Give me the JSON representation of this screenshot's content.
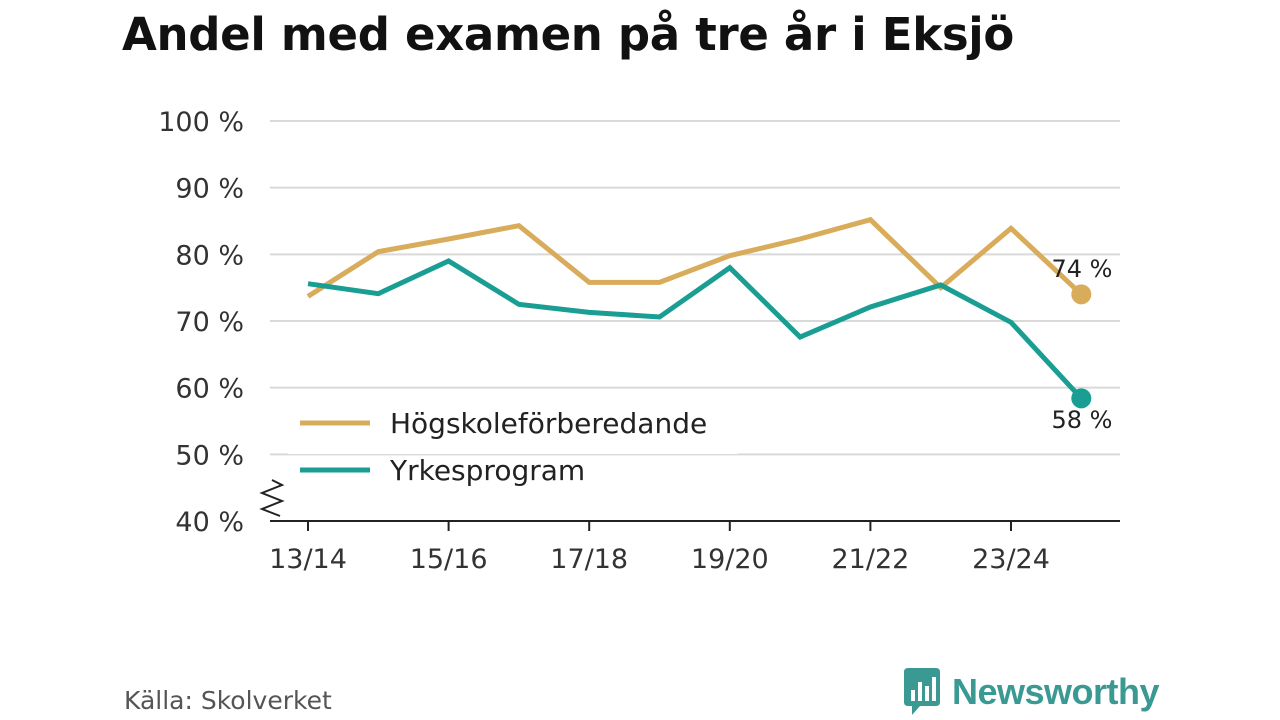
{
  "chart_data": {
    "type": "line",
    "title": "Andel med examen på tre år i Eksjö",
    "categories": [
      "13/14",
      "14/15",
      "15/16",
      "16/17",
      "17/18",
      "18/19",
      "19/20",
      "20/21",
      "21/22",
      "22/23",
      "23/24",
      "24/25"
    ],
    "x_tick_labels": [
      "13/14",
      "15/16",
      "17/18",
      "19/20",
      "21/22",
      "23/24"
    ],
    "y_tick_labels": [
      "40 %",
      "50 %",
      "60 %",
      "70 %",
      "80 %",
      "90 %",
      "100 %"
    ],
    "y_ticks": [
      40,
      50,
      60,
      70,
      80,
      90,
      100
    ],
    "ylim": [
      40,
      100
    ],
    "grid": true,
    "legend_position": "bottom-left",
    "series": [
      {
        "name": "Högskoleförberedande",
        "color": "#d8ac5b",
        "values": [
          73.7,
          80.4,
          82.3,
          84.3,
          75.8,
          75.8,
          79.8,
          82.3,
          85.2,
          75.0,
          83.9,
          74.0
        ],
        "end_label": "74 %"
      },
      {
        "name": "Yrkesprogram",
        "color": "#1a9e93",
        "values": [
          75.6,
          74.1,
          79.0,
          72.5,
          71.3,
          70.6,
          78.0,
          67.6,
          72.1,
          75.4,
          69.8,
          58.4
        ],
        "end_label": "58 %"
      }
    ]
  },
  "source": "Källa: Skolverket",
  "brand": "Newsworthy"
}
